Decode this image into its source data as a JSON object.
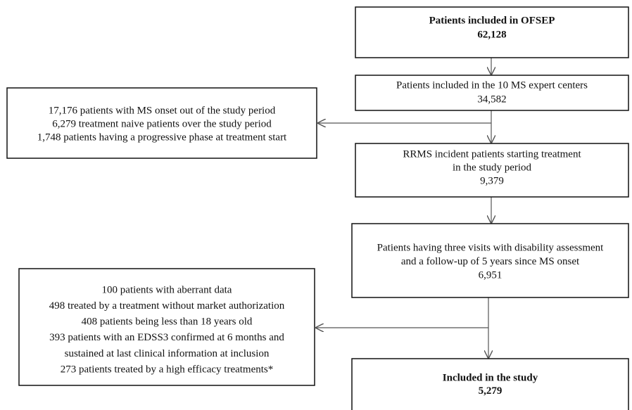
{
  "nodes": [
    {
      "lines": [
        "Patients included in OFSEP",
        "62,128"
      ]
    },
    {
      "lines": [
        "Patients included in the 10 MS expert centers",
        "34,582"
      ]
    },
    {
      "lines": [
        "17,176 patients with MS onset out of the study period",
        "6,279 treatment naive patients over the study period",
        "1,748 patients having a progressive phase at treatment start"
      ]
    },
    {
      "lines": [
        "RRMS incident patients starting treatment",
        "in the study period",
        "9,379"
      ]
    },
    {
      "lines": [
        "Patients having three visits with disability assessment",
        "and a follow-up of 5 years since MS onset",
        "6,951"
      ]
    },
    {
      "lines": [
        "100 patients with aberrant data",
        "498 treated by a treatment without market authorization",
        "408 patients being less than 18 years old",
        "393 patients with an EDSS3 confirmed at 6 months and",
        "sustained at last clinical information at inclusion",
        "273 patients treated by a high efficacy treatments*"
      ]
    },
    {
      "lines": [
        "Included in the study",
        "5,279"
      ]
    }
  ]
}
